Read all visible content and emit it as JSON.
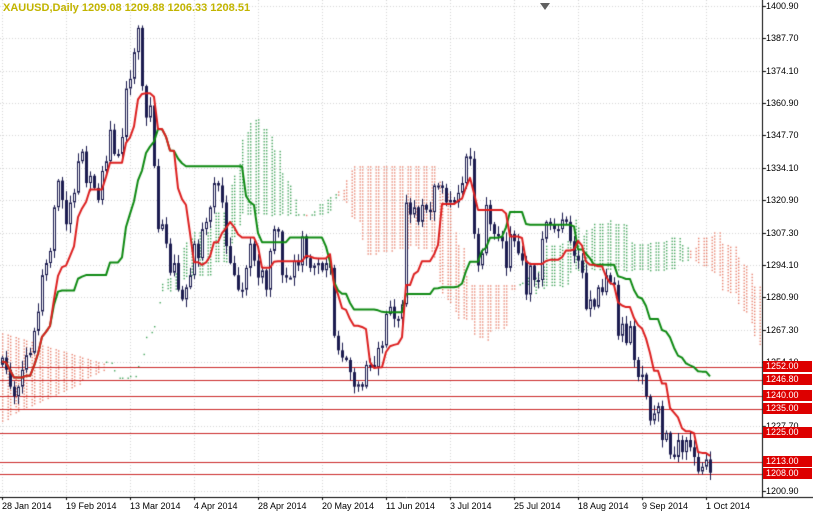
{
  "header": {
    "title_text": "XAUUSD,Daily 1209.08 1209.88 1206.33 1208.51"
  },
  "chart_data": {
    "type": "candlestick",
    "symbol": "XAUUSD",
    "timeframe": "Daily",
    "title": "XAUUSD,Daily",
    "ohlc_display": {
      "open": "1209.08",
      "high": "1209.88",
      "low": "1206.33",
      "close": "1208.51"
    },
    "ylim": [
      1198.5,
      1403.5
    ],
    "grid": true,
    "legend_position": "none",
    "y_axis_ticks": [
      {
        "value": 1400.9,
        "label": "1400.90"
      },
      {
        "value": 1387.7,
        "label": "1387.70"
      },
      {
        "value": 1374.1,
        "label": "1374.10"
      },
      {
        "value": 1360.9,
        "label": "1360.90"
      },
      {
        "value": 1347.7,
        "label": "1347.70"
      },
      {
        "value": 1334.1,
        "label": "1334.10"
      },
      {
        "value": 1320.9,
        "label": "1320.90"
      },
      {
        "value": 1307.3,
        "label": "1307.30"
      },
      {
        "value": 1294.1,
        "label": "1294.10"
      },
      {
        "value": 1280.9,
        "label": "1280.90"
      },
      {
        "value": 1267.3,
        "label": "1267.30"
      },
      {
        "value": 1254.1,
        "label": "1254.10"
      },
      {
        "value": 1227.7,
        "label": "1227.70"
      },
      {
        "value": 1200.9,
        "label": "1200.90"
      }
    ],
    "x_axis_ticks": [
      {
        "index": 0,
        "label": "28 Jan 2014"
      },
      {
        "index": 16,
        "label": "19 Feb 2014"
      },
      {
        "index": 32,
        "label": "13 Mar 2014"
      },
      {
        "index": 48,
        "label": "4 Apr 2014"
      },
      {
        "index": 64,
        "label": "28 Apr 2014"
      },
      {
        "index": 80,
        "label": "20 May 2014"
      },
      {
        "index": 96,
        "label": "11 Jun 2014"
      },
      {
        "index": 112,
        "label": "3 Jul 2014"
      },
      {
        "index": 128,
        "label": "25 Jul 2014"
      },
      {
        "index": 144,
        "label": "18 Aug 2014"
      },
      {
        "index": 160,
        "label": "9 Sep 2014"
      },
      {
        "index": 176,
        "label": "1 Oct 2014"
      }
    ],
    "closes": [
      1256,
      1251,
      1244,
      1240,
      1244,
      1251,
      1257,
      1258,
      1267,
      1275,
      1290,
      1295,
      1300,
      1318,
      1329,
      1321,
      1311,
      1320,
      1324,
      1337,
      1341,
      1328,
      1331,
      1326,
      1321,
      1333,
      1337,
      1350,
      1340,
      1340,
      1347,
      1367,
      1371,
      1382,
      1392,
      1368,
      1355,
      1360,
      1335,
      1309,
      1311,
      1303,
      1291,
      1295,
      1284,
      1280,
      1285,
      1290,
      1303,
      1297,
      1309,
      1312,
      1318,
      1328,
      1327,
      1320,
      1302,
      1295,
      1290,
      1284,
      1284,
      1293,
      1303,
      1296,
      1289,
      1292,
      1284,
      1300,
      1309,
      1308,
      1290,
      1289,
      1289,
      1296,
      1294,
      1306,
      1297,
      1293,
      1294,
      1295,
      1292,
      1295,
      1293,
      1265,
      1259,
      1256,
      1255,
      1250,
      1244,
      1245,
      1244,
      1253,
      1253,
      1252,
      1260,
      1261,
      1274,
      1277,
      1272,
      1272,
      1278,
      1320,
      1315,
      1318,
      1312,
      1319,
      1317,
      1316,
      1327,
      1327,
      1326,
      1320,
      1321,
      1320,
      1324,
      1328,
      1339,
      1338,
      1307,
      1294,
      1299,
      1319,
      1311,
      1307,
      1306,
      1304,
      1293,
      1307,
      1304,
      1299,
      1296,
      1282,
      1294,
      1288,
      1288,
      1305,
      1312,
      1311,
      1309,
      1309,
      1313,
      1312,
      1304,
      1298,
      1296,
      1291,
      1276,
      1280,
      1277,
      1285,
      1283,
      1290,
      1287,
      1286,
      1265,
      1270,
      1262,
      1269,
      1255,
      1248,
      1249,
      1240,
      1230,
      1233,
      1236,
      1222,
      1225,
      1216,
      1215,
      1222,
      1217,
      1222,
      1219,
      1215,
      1209,
      1211,
      1214,
      1208.5
    ],
    "wick_amp": 3.2,
    "indicator_name": "Ichimoku Kinko Hyo",
    "ichimoku": {
      "tenkan": 9,
      "kijun": 26,
      "senkou_b": 52,
      "shift": 26
    },
    "left_cloud": {
      "spanA_start": 1230,
      "spanA_end": 1251,
      "spanB_start": 1266,
      "spanB_end": 1253
    },
    "levels": [
      {
        "value": 1252.0,
        "label": "1252.00"
      },
      {
        "value": 1246.8,
        "label": "1246.80"
      },
      {
        "value": 1240.0,
        "label": "1240.00"
      },
      {
        "value": 1235.0,
        "label": "1235.00"
      },
      {
        "value": 1225.0,
        "label": "1225.00"
      },
      {
        "value": 1213.0,
        "label": "1213.00"
      },
      {
        "value": 1208.0,
        "label": "1208.00"
      }
    ],
    "colors": {
      "background": "#ffffff",
      "grid": "#d6d6d6",
      "candle_border": "#1c1c50",
      "candle_up_fill": "#ffffff",
      "candle_down_fill": "#1c1c50",
      "tenkan_line": "#dd1f1f",
      "kijun_line": "#0e8a12",
      "cloud_bull": "#44a55c",
      "cloud_bear": "#e8826e",
      "level_line": "#cc2a2a",
      "badge_bg": "#dd0000",
      "badge_text": "#ffffff",
      "axis_text": "#000000",
      "separator": "#000000",
      "title_text": "#c2b400",
      "shift_marker": "#606060"
    }
  }
}
